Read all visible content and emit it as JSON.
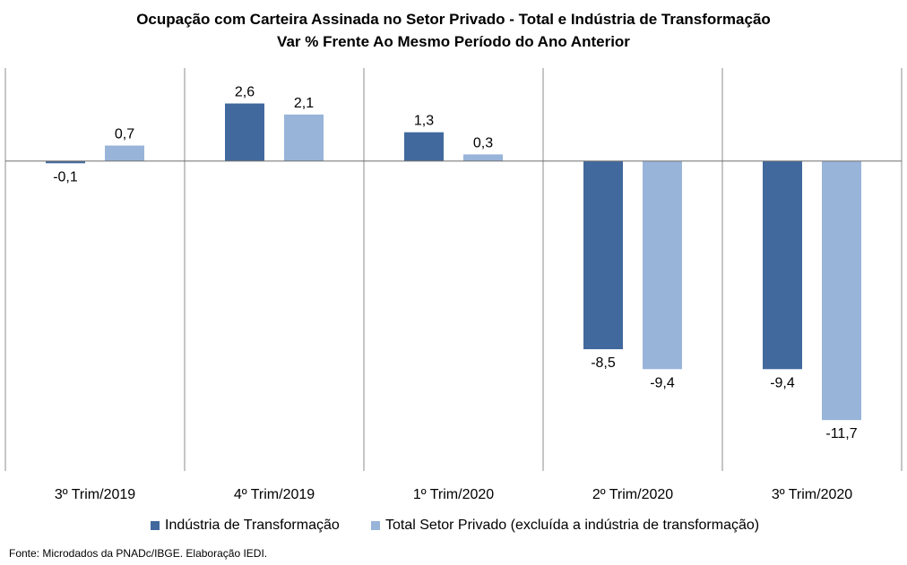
{
  "chart_data": {
    "type": "bar",
    "title": "Ocupação com Carteira Assinada no Setor Privado - Total e Indústria de Transformação",
    "subtitle": "Var % Frente Ao Mesmo Período do Ano Anterior",
    "categories": [
      "3º Trim/2019",
      "4º Trim/2019",
      "1º Trim/2020",
      "2º Trim/2020",
      "3º Trim/2020"
    ],
    "series": [
      {
        "name": "Indústria de Transformação",
        "color": "#41699e",
        "values": [
          -0.1,
          2.6,
          1.3,
          -8.5,
          -9.4
        ],
        "labels": [
          "-0,1",
          "2,6",
          "1,3",
          "-8,5",
          "-9,4"
        ]
      },
      {
        "name": "Total Setor Privado (excluída a indústria de transformação)",
        "color": "#98b4d9",
        "values": [
          0.7,
          2.1,
          0.3,
          -9.4,
          -11.7
        ],
        "labels": [
          "0,7",
          "2,1",
          "0,3",
          "-9,4",
          "-11,7"
        ]
      }
    ],
    "ylim": [
      -14.0,
      4.2
    ],
    "grid": false,
    "legend": "bottom",
    "source": "Fonte: Microdados da PNADc/IBGE. Elaboração IEDI."
  }
}
